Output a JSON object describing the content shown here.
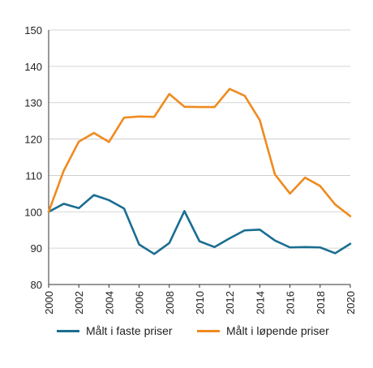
{
  "chart_data": {
    "type": "line",
    "x": [
      2000,
      2001,
      2002,
      2003,
      2004,
      2005,
      2006,
      2007,
      2008,
      2009,
      2010,
      2011,
      2012,
      2013,
      2014,
      2015,
      2016,
      2017,
      2018,
      2019,
      2020
    ],
    "series": [
      {
        "name": "Målt i faste priser",
        "color": "#1a6e91",
        "values": [
          100,
          102.2,
          101,
          104.6,
          103.2,
          100.9,
          91,
          88.4,
          91.4,
          100.2,
          91.9,
          90.3,
          92.7,
          94.9,
          95.1,
          92.1,
          90.2,
          90.3,
          90.2,
          88.6,
          91.2
        ]
      },
      {
        "name": "Målt i løpende priser",
        "color": "#ef8a1f",
        "values": [
          100,
          111.3,
          119.3,
          121.7,
          119.2,
          125.9,
          126.2,
          126.1,
          132.4,
          128.9,
          128.8,
          128.8,
          133.8,
          131.9,
          125.2,
          110.3,
          105,
          109.4,
          107.1,
          102,
          98.8
        ]
      }
    ],
    "ylim": [
      80,
      150
    ],
    "yticks": [
      "80",
      "90",
      "100",
      "110",
      "120",
      "130",
      "140",
      "150"
    ],
    "xticks": [
      "2000",
      "2002",
      "2004",
      "2006",
      "2008",
      "2010",
      "2012",
      "2014",
      "2016",
      "2018",
      "2020"
    ],
    "xlim": [
      2000,
      2020
    ],
    "grid": true,
    "legend_position": "bottom"
  }
}
